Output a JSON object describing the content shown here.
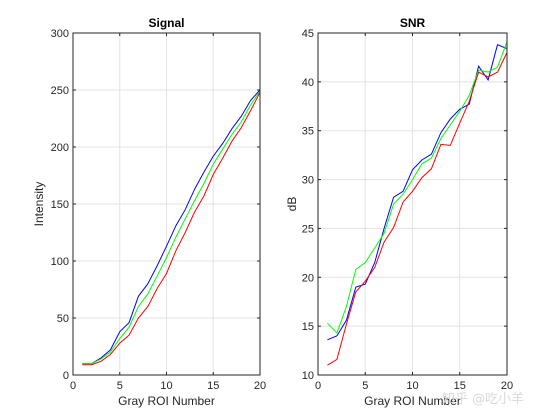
{
  "watermark": "知乎 @吃小羊",
  "chart_data": [
    {
      "type": "line",
      "title": "Signal",
      "xlabel": "Gray ROI Number",
      "ylabel": "Intensity",
      "xlim": [
        0,
        20
      ],
      "ylim": [
        0,
        300
      ],
      "xticks": [
        0,
        5,
        10,
        15,
        20
      ],
      "yticks": [
        0,
        50,
        100,
        150,
        200,
        250,
        300
      ],
      "grid": true,
      "x": [
        1,
        2,
        3,
        4,
        5,
        6,
        7,
        8,
        9,
        10,
        11,
        12,
        13,
        14,
        15,
        16,
        17,
        18,
        19,
        20
      ],
      "series": [
        {
          "color": "#0000ff",
          "values": [
            10,
            10,
            15,
            22,
            38,
            46,
            69,
            80,
            96,
            113,
            131,
            145,
            163,
            178,
            192,
            203,
            216,
            227,
            241,
            250
          ]
        },
        {
          "color": "#00ff00",
          "values": [
            10,
            10,
            14,
            20,
            32,
            42,
            60,
            71,
            87,
            103,
            121,
            137,
            153,
            168,
            185,
            198,
            211,
            222,
            237,
            249
          ]
        },
        {
          "color": "#ff0000",
          "values": [
            9,
            9,
            12,
            18,
            28,
            35,
            50,
            60,
            76,
            89,
            109,
            125,
            143,
            157,
            176,
            190,
            205,
            217,
            232,
            248
          ]
        }
      ]
    },
    {
      "type": "line",
      "title": "SNR",
      "xlabel": "Gray ROI Number",
      "ylabel": "dB",
      "xlim": [
        0,
        20
      ],
      "ylim": [
        10,
        45
      ],
      "xticks": [
        0,
        5,
        10,
        15,
        20
      ],
      "yticks": [
        10,
        15,
        20,
        25,
        30,
        35,
        40,
        45
      ],
      "grid": true,
      "x": [
        1,
        2,
        3,
        4,
        5,
        6,
        7,
        8,
        9,
        10,
        11,
        12,
        13,
        14,
        15,
        16,
        17,
        18,
        19,
        20
      ],
      "series": [
        {
          "color": "#0000ff",
          "values": [
            13.6,
            14.0,
            15.6,
            19.0,
            19.3,
            21.5,
            25.0,
            28.2,
            28.8,
            31.0,
            32.0,
            32.6,
            34.8,
            36.2,
            37.2,
            37.7,
            41.6,
            40.2,
            43.8,
            43.4
          ]
        },
        {
          "color": "#00ff00",
          "values": [
            15.3,
            14.3,
            17.0,
            20.8,
            21.5,
            23.0,
            24.5,
            27.5,
            28.5,
            30.0,
            31.6,
            32.2,
            34.2,
            35.6,
            37.0,
            38.6,
            41.2,
            41.0,
            41.5,
            44.1
          ]
        },
        {
          "color": "#ff0000",
          "values": [
            11.0,
            11.6,
            15.2,
            18.5,
            19.6,
            21.0,
            23.6,
            25.1,
            27.7,
            28.8,
            30.2,
            31.1,
            33.6,
            33.5,
            35.8,
            38.0,
            41.0,
            40.5,
            41.0,
            43.0
          ]
        }
      ]
    }
  ]
}
